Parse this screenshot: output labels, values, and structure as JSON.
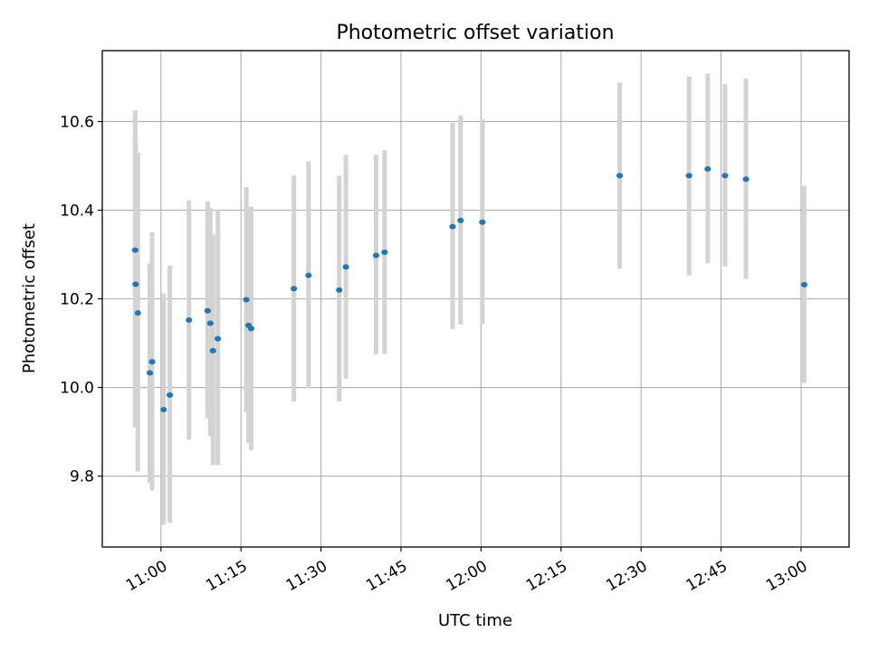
{
  "chart_data": {
    "type": "scatter",
    "title": "Photometric offset variation",
    "xlabel": "UTC time",
    "ylabel": "Photometric offset",
    "x_unit": "time (HH:MM)",
    "xlim": [
      "10:49",
      "13:09"
    ],
    "ylim": [
      9.64,
      10.76
    ],
    "x_ticks": [
      "11:00",
      "11:15",
      "11:30",
      "11:45",
      "12:00",
      "12:15",
      "12:30",
      "12:45",
      "13:00"
    ],
    "y_ticks": [
      9.8,
      10.0,
      10.2,
      10.4,
      10.6
    ],
    "y_tick_labels": [
      "9.8",
      "10.0",
      "10.2",
      "10.4",
      "10.6"
    ],
    "grid": true,
    "marker_color": "#1f77b4",
    "errorbar_color": "#d3d3d3",
    "points": [
      {
        "t": "10:55:10",
        "y": 10.31,
        "ylo": 9.91,
        "yhi": 10.625
      },
      {
        "t": "10:55:15",
        "y": 10.233,
        "ylo": 9.91,
        "yhi": 10.555
      },
      {
        "t": "10:55:40",
        "y": 10.168,
        "ylo": 9.81,
        "yhi": 10.53
      },
      {
        "t": "10:57:55",
        "y": 10.033,
        "ylo": 9.785,
        "yhi": 10.28
      },
      {
        "t": "10:58:20",
        "y": 10.058,
        "ylo": 9.768,
        "yhi": 10.35
      },
      {
        "t": "11:00:30",
        "y": 9.95,
        "ylo": 9.69,
        "yhi": 10.212
      },
      {
        "t": "11:01:40",
        "y": 9.983,
        "ylo": 9.695,
        "yhi": 10.275
      },
      {
        "t": "11:05:15",
        "y": 10.152,
        "ylo": 9.882,
        "yhi": 10.422
      },
      {
        "t": "11:08:45",
        "y": 10.173,
        "ylo": 9.93,
        "yhi": 10.42
      },
      {
        "t": "11:09:15",
        "y": 10.145,
        "ylo": 9.89,
        "yhi": 10.405
      },
      {
        "t": "11:09:45",
        "y": 10.083,
        "ylo": 9.825,
        "yhi": 10.345
      },
      {
        "t": "11:10:40",
        "y": 10.11,
        "ylo": 9.825,
        "yhi": 10.4
      },
      {
        "t": "11:16:00",
        "y": 10.198,
        "ylo": 9.945,
        "yhi": 10.452
      },
      {
        "t": "11:16:25",
        "y": 10.14,
        "ylo": 9.875,
        "yhi": 10.4
      },
      {
        "t": "11:16:55",
        "y": 10.133,
        "ylo": 9.858,
        "yhi": 10.408
      },
      {
        "t": "11:24:55",
        "y": 10.223,
        "ylo": 9.968,
        "yhi": 10.478
      },
      {
        "t": "11:27:40",
        "y": 10.253,
        "ylo": 9.998,
        "yhi": 10.51
      },
      {
        "t": "11:33:25",
        "y": 10.22,
        "ylo": 9.968,
        "yhi": 10.478
      },
      {
        "t": "11:34:40",
        "y": 10.272,
        "ylo": 10.02,
        "yhi": 10.525
      },
      {
        "t": "11:40:20",
        "y": 10.298,
        "ylo": 10.075,
        "yhi": 10.525
      },
      {
        "t": "11:41:55",
        "y": 10.305,
        "ylo": 10.075,
        "yhi": 10.535
      },
      {
        "t": "11:54:40",
        "y": 10.363,
        "ylo": 10.132,
        "yhi": 10.597
      },
      {
        "t": "11:56:10",
        "y": 10.377,
        "ylo": 10.142,
        "yhi": 10.614
      },
      {
        "t": "12:00:15",
        "y": 10.373,
        "ylo": 10.143,
        "yhi": 10.605
      },
      {
        "t": "12:26:00",
        "y": 10.478,
        "ylo": 10.268,
        "yhi": 10.688
      },
      {
        "t": "12:39:00",
        "y": 10.478,
        "ylo": 10.253,
        "yhi": 10.702
      },
      {
        "t": "12:42:30",
        "y": 10.493,
        "ylo": 10.28,
        "yhi": 10.708
      },
      {
        "t": "12:45:45",
        "y": 10.478,
        "ylo": 10.273,
        "yhi": 10.685
      },
      {
        "t": "12:49:40",
        "y": 10.47,
        "ylo": 10.245,
        "yhi": 10.697
      },
      {
        "t": "13:00:35",
        "y": 10.232,
        "ylo": 10.01,
        "yhi": 10.455
      }
    ]
  }
}
